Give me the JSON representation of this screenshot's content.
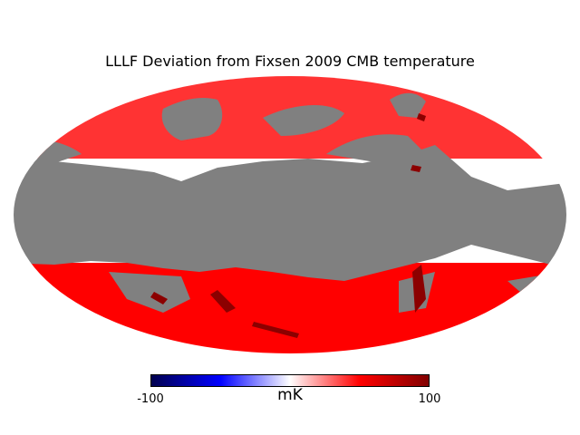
{
  "chart_data": {
    "type": "heatmap",
    "projection": "mollweide",
    "title": "LLLF Deviation from Fixsen 2009 CMB temperature",
    "colorbar": {
      "label": "mK",
      "min": -100,
      "max": 100,
      "ticks": [
        "-100",
        "100"
      ],
      "cmap": "seismic"
    },
    "masked_color": "#808080",
    "typical_value_mK": 40,
    "regions": [
      {
        "name": "north-cap",
        "value": 40
      },
      {
        "name": "north-east-patch",
        "value": 45
      },
      {
        "name": "south-arc",
        "value": 50
      },
      {
        "name": "south-west-patch",
        "value": 40
      },
      {
        "name": "south-east-patch",
        "value": 42
      },
      {
        "name": "galactic-plane-mask",
        "value": null
      }
    ]
  }
}
